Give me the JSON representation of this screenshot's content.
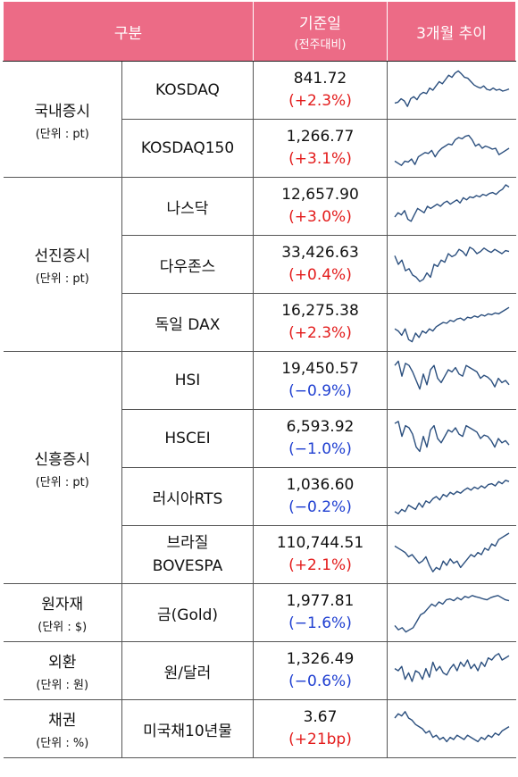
{
  "header": {
    "col_group": "구분",
    "col_price": "기준일",
    "col_price_sub": "(전주대비)",
    "col_trend": "3개월 추이"
  },
  "groups": [
    {
      "name": "국내증시",
      "unit": "(단위 : pt)"
    },
    {
      "name": "선진증시",
      "unit": "(단위 : pt)"
    },
    {
      "name": "신흥증시",
      "unit": "(단위 : pt)"
    },
    {
      "name": "원자재",
      "unit": "(단위 : $)"
    },
    {
      "name": "외환",
      "unit": "(단위 : 원)"
    },
    {
      "name": "채권",
      "unit": "(단위 : %)"
    }
  ],
  "rows": [
    {
      "name": "KOSDAQ",
      "value": "841.72",
      "change": "(+2.3%)",
      "dir": "up",
      "color": "#e31b1b"
    },
    {
      "name": "KOSDAQ150",
      "value": "1,266.77",
      "change": "(+3.1%)",
      "dir": "up",
      "color": "#e31b1b"
    },
    {
      "name": "나스닥",
      "value": "12,657.90",
      "change": "(+3.0%)",
      "dir": "up",
      "color": "#e31b1b"
    },
    {
      "name": "다우존스",
      "value": "33,426.63",
      "change": "(+0.4%)",
      "dir": "up",
      "color": "#e31b1b"
    },
    {
      "name": "독일 DAX",
      "value": "16,275.38",
      "change": "(+2.3%)",
      "dir": "up",
      "color": "#e31b1b"
    },
    {
      "name": "HSI",
      "value": "19,450.57",
      "change": "(−0.9%)",
      "dir": "down",
      "color": "#1f3fd1"
    },
    {
      "name": "HSCEI",
      "value": "6,593.92",
      "change": "(−1.0%)",
      "dir": "down",
      "color": "#1f3fd1"
    },
    {
      "name": "러시아RTS",
      "value": "1,036.60",
      "change": "(−0.2%)",
      "dir": "down",
      "color": "#1f3fd1"
    },
    {
      "name": "브라질 BOVESPA",
      "name_line1": "브라질",
      "name_line2": "BOVESPA",
      "value": "110,744.51",
      "change": "(+2.1%)",
      "dir": "up",
      "color": "#e31b1b"
    },
    {
      "name": "금(Gold)",
      "value": "1,977.81",
      "change": "(−1.6%)",
      "dir": "down",
      "color": "#1f3fd1"
    },
    {
      "name": "원/달러",
      "value": "1,326.49",
      "change": "(−0.6%)",
      "dir": "down",
      "color": "#1f3fd1"
    },
    {
      "name": "미국채10년물",
      "value": "3.67",
      "change": "(+21bp)",
      "dir": "up",
      "color": "#e31b1b"
    }
  ],
  "sparkline_color": "#2b4f7e",
  "sparklines": [
    [
      0.2,
      0.22,
      0.3,
      0.25,
      0.12,
      0.3,
      0.35,
      0.28,
      0.4,
      0.45,
      0.42,
      0.55,
      0.5,
      0.6,
      0.7,
      0.65,
      0.75,
      0.85,
      0.8,
      0.9,
      0.95,
      0.88,
      0.8,
      0.78,
      0.7,
      0.62,
      0.58,
      0.55,
      0.6,
      0.52,
      0.5,
      0.55,
      0.5,
      0.52,
      0.48,
      0.5,
      0.53
    ],
    [
      0.2,
      0.15,
      0.1,
      0.2,
      0.18,
      0.25,
      0.12,
      0.3,
      0.35,
      0.4,
      0.38,
      0.45,
      0.3,
      0.42,
      0.5,
      0.55,
      0.6,
      0.58,
      0.7,
      0.75,
      0.72,
      0.78,
      0.8,
      0.7,
      0.55,
      0.6,
      0.5,
      0.55,
      0.52,
      0.48,
      0.5,
      0.35,
      0.4,
      0.45,
      0.5
    ],
    [
      0.25,
      0.35,
      0.3,
      0.4,
      0.2,
      0.15,
      0.3,
      0.45,
      0.4,
      0.35,
      0.5,
      0.45,
      0.5,
      0.55,
      0.5,
      0.58,
      0.62,
      0.55,
      0.6,
      0.65,
      0.58,
      0.7,
      0.65,
      0.72,
      0.7,
      0.75,
      0.72,
      0.78,
      0.75,
      0.8,
      0.82,
      0.78,
      0.85,
      0.9,
      1.0,
      0.95
    ],
    [
      0.7,
      0.5,
      0.6,
      0.35,
      0.4,
      0.25,
      0.2,
      0.1,
      0.15,
      0.3,
      0.2,
      0.5,
      0.45,
      0.6,
      0.55,
      0.75,
      0.68,
      0.72,
      0.85,
      0.8,
      0.7,
      0.9,
      0.85,
      0.75,
      0.8,
      0.88,
      0.82,
      0.78,
      0.85,
      0.8,
      0.75,
      0.82,
      0.8
    ],
    [
      0.35,
      0.3,
      0.2,
      0.35,
      0.1,
      0.05,
      0.25,
      0.15,
      0.3,
      0.25,
      0.35,
      0.3,
      0.4,
      0.45,
      0.5,
      0.48,
      0.55,
      0.52,
      0.58,
      0.6,
      0.55,
      0.62,
      0.6,
      0.65,
      0.62,
      0.68,
      0.65,
      0.7,
      0.68,
      0.72,
      0.7,
      0.75,
      0.8,
      0.85
    ],
    [
      0.85,
      0.95,
      0.6,
      0.9,
      0.85,
      0.7,
      0.5,
      0.3,
      0.65,
      0.4,
      0.75,
      0.85,
      0.55,
      0.45,
      0.6,
      0.75,
      0.7,
      0.8,
      0.65,
      0.6,
      0.85,
      0.8,
      0.75,
      0.7,
      0.55,
      0.62,
      0.58,
      0.5,
      0.35,
      0.55,
      0.45,
      0.5,
      0.4
    ],
    [
      0.85,
      0.9,
      0.55,
      0.8,
      0.75,
      0.6,
      0.3,
      0.2,
      0.55,
      0.3,
      0.7,
      0.8,
      0.5,
      0.4,
      0.55,
      0.7,
      0.65,
      0.75,
      0.6,
      0.55,
      0.8,
      0.75,
      0.7,
      0.65,
      0.5,
      0.58,
      0.55,
      0.45,
      0.3,
      0.5,
      0.4,
      0.45,
      0.35
    ],
    [
      0.15,
      0.1,
      0.2,
      0.15,
      0.3,
      0.25,
      0.2,
      0.35,
      0.25,
      0.4,
      0.35,
      0.45,
      0.5,
      0.42,
      0.55,
      0.5,
      0.6,
      0.55,
      0.62,
      0.58,
      0.65,
      0.7,
      0.65,
      0.72,
      0.68,
      0.75,
      0.7,
      0.78,
      0.8,
      0.75,
      0.85,
      0.8,
      0.88,
      0.85
    ],
    [
      0.7,
      0.65,
      0.6,
      0.55,
      0.45,
      0.5,
      0.4,
      0.3,
      0.35,
      0.45,
      0.25,
      0.1,
      0.2,
      0.15,
      0.35,
      0.25,
      0.4,
      0.3,
      0.35,
      0.2,
      0.3,
      0.4,
      0.5,
      0.45,
      0.55,
      0.5,
      0.65,
      0.6,
      0.75,
      0.7,
      0.85,
      0.9,
      0.95,
      1.0
    ],
    [
      0.2,
      0.1,
      0.15,
      0.05,
      0.1,
      0.15,
      0.3,
      0.45,
      0.5,
      0.6,
      0.7,
      0.65,
      0.75,
      0.7,
      0.8,
      0.82,
      0.78,
      0.85,
      0.8,
      0.88,
      0.85,
      0.9,
      0.87,
      0.85,
      0.82,
      0.8,
      0.85,
      0.88,
      0.9,
      0.85,
      0.8,
      0.78
    ],
    [
      0.55,
      0.5,
      0.6,
      0.3,
      0.45,
      0.25,
      0.5,
      0.45,
      0.3,
      0.55,
      0.35,
      0.7,
      0.5,
      0.6,
      0.45,
      0.4,
      0.55,
      0.65,
      0.5,
      0.7,
      0.6,
      0.75,
      0.55,
      0.65,
      0.5,
      0.7,
      0.6,
      0.8,
      0.75,
      0.85,
      0.9,
      0.75,
      0.8,
      0.85
    ],
    [
      0.75,
      0.85,
      0.8,
      0.9,
      0.75,
      0.7,
      0.6,
      0.55,
      0.5,
      0.4,
      0.45,
      0.3,
      0.35,
      0.25,
      0.3,
      0.2,
      0.3,
      0.25,
      0.35,
      0.3,
      0.25,
      0.35,
      0.3,
      0.25,
      0.2,
      0.3,
      0.25,
      0.35,
      0.3,
      0.4,
      0.35,
      0.45,
      0.5,
      0.55
    ]
  ]
}
